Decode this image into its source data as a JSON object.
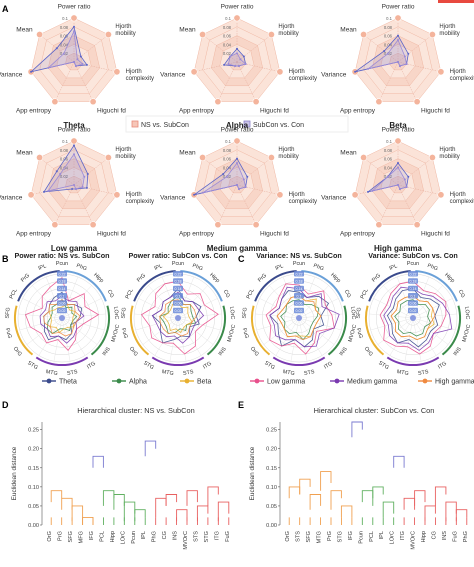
{
  "panels": {
    "A": "A",
    "B": "B",
    "C": "C",
    "D": "D",
    "E": "E"
  },
  "accent_color": "#e8493f",
  "radar_axes": [
    "Power ratio",
    "Hjorth mobility",
    "Hjorth complexity",
    "Higuchi fd",
    "App entropy",
    "Variance",
    "Mean"
  ],
  "radar_ticks": [
    "0.1",
    "0.08",
    "0.06",
    "0.04",
    "0.02"
  ],
  "radar_legend": [
    "NS vs. SubCon",
    "SubCon vs. Con"
  ],
  "chart_data": [
    {
      "type": "radar",
      "title": "Theta",
      "axes": [
        "Power ratio",
        "Hjorth mobility",
        "Hjorth complexity",
        "Higuchi fd",
        "App entropy",
        "Variance",
        "Mean"
      ],
      "series": [
        {
          "name": "NS vs. SubCon",
          "values": [
            0.08,
            0.02,
            0.03,
            0.01,
            0.0,
            0.1,
            0.05
          ]
        },
        {
          "name": "SubCon vs. Con",
          "values": [
            0.07,
            0.01,
            0.02,
            0.01,
            0.0,
            0.06,
            0.03
          ]
        }
      ]
    },
    {
      "type": "radar",
      "title": "Alpha",
      "axes": [
        "Power ratio",
        "Hjorth mobility",
        "Hjorth complexity",
        "Higuchi fd",
        "App entropy",
        "Variance",
        "Mean"
      ],
      "series": [
        {
          "name": "NS vs. SubCon",
          "values": [
            0.03,
            0.02,
            0.02,
            0.01,
            0.01,
            0.03,
            0.02
          ]
        },
        {
          "name": "SubCon vs. Con",
          "values": [
            0.02,
            0.01,
            0.02,
            0.01,
            0.01,
            0.02,
            0.02
          ]
        }
      ]
    },
    {
      "type": "radar",
      "title": "Beta",
      "axes": [
        "Power ratio",
        "Hjorth mobility",
        "Hjorth complexity",
        "Higuchi fd",
        "App entropy",
        "Variance",
        "Mean"
      ],
      "series": [
        {
          "name": "NS vs. SubCon",
          "values": [
            0.06,
            0.03,
            0.02,
            0.01,
            0.0,
            0.1,
            0.04
          ]
        },
        {
          "name": "SubCon vs. Con",
          "values": [
            0.05,
            0.02,
            0.02,
            0.01,
            0.0,
            0.07,
            0.03
          ]
        }
      ]
    },
    {
      "type": "radar",
      "title": "Low gamma",
      "axes": [
        "Power ratio",
        "Hjorth mobility",
        "Hjorth complexity",
        "Higuchi fd",
        "App entropy",
        "Variance",
        "Mean"
      ],
      "series": [
        {
          "name": "NS vs. SubCon",
          "values": [
            0.09,
            0.04,
            0.03,
            0.01,
            0.01,
            0.07,
            0.05
          ]
        },
        {
          "name": "SubCon vs. Con",
          "values": [
            0.07,
            0.03,
            0.02,
            0.01,
            0.0,
            0.06,
            0.04
          ]
        }
      ]
    },
    {
      "type": "radar",
      "title": "Medium gamma",
      "axes": [
        "Power ratio",
        "Hjorth mobility",
        "Hjorth complexity",
        "Higuchi fd",
        "App entropy",
        "Variance",
        "Mean"
      ],
      "series": [
        {
          "name": "NS vs. SubCon",
          "values": [
            0.06,
            0.03,
            0.02,
            0.01,
            0.0,
            0.1,
            0.04
          ]
        },
        {
          "name": "SubCon vs. Con",
          "values": [
            0.05,
            0.02,
            0.02,
            0.01,
            0.0,
            0.08,
            0.03
          ]
        }
      ]
    },
    {
      "type": "radar",
      "title": "High gamma",
      "axes": [
        "Power ratio",
        "Hjorth mobility",
        "Hjorth complexity",
        "Higuchi fd",
        "App entropy",
        "Variance",
        "Mean"
      ],
      "series": [
        {
          "name": "NS vs. SubCon",
          "values": [
            0.05,
            0.03,
            0.02,
            0.01,
            0.0,
            0.07,
            0.03
          ]
        },
        {
          "name": "SubCon vs. Con",
          "values": [
            0.04,
            0.02,
            0.02,
            0.01,
            0.0,
            0.06,
            0.03
          ]
        }
      ]
    },
    {
      "type": "radar",
      "title": "Power ratio: NS vs. SubCon",
      "panel": "B",
      "regions": [
        "Pcun",
        "PhG",
        "Hipp",
        "CG",
        "LOrC",
        "MVOrC",
        "INS",
        "ITG",
        "STS",
        "MTG",
        "STG",
        "OrG",
        "FuG",
        "SFG",
        "PCL",
        "PrG",
        "IPL"
      ],
      "rings": [
        "0.02",
        "0.06",
        "0.1",
        "0.14",
        "0.18",
        "0.22"
      ],
      "series_names": [
        "Theta",
        "Alpha",
        "Beta",
        "Low gamma",
        "Medium gamma",
        "High gamma"
      ],
      "series": [
        {
          "name": "Theta",
          "values": [
            0.14,
            0.08,
            0.1,
            0.12,
            0.1,
            0.08,
            0.06,
            0.1,
            0.12,
            0.1,
            0.14,
            0.12,
            0.1,
            0.1,
            0.08,
            0.1,
            0.12
          ]
        },
        {
          "name": "Alpha",
          "values": [
            0.1,
            0.06,
            0.08,
            0.06,
            0.08,
            0.06,
            0.06,
            0.08,
            0.06,
            0.06,
            0.1,
            0.1,
            0.08,
            0.06,
            0.06,
            0.08,
            0.08
          ]
        },
        {
          "name": "Beta",
          "values": [
            0.06,
            0.08,
            0.06,
            0.08,
            0.06,
            0.06,
            0.08,
            0.06,
            0.06,
            0.08,
            0.06,
            0.08,
            0.06,
            0.06,
            0.08,
            0.06,
            0.06
          ]
        },
        {
          "name": "Low gamma",
          "values": [
            0.22,
            0.1,
            0.18,
            0.14,
            0.2,
            0.12,
            0.1,
            0.14,
            0.18,
            0.12,
            0.16,
            0.14,
            0.18,
            0.2,
            0.12,
            0.16,
            0.18
          ]
        },
        {
          "name": "Medium gamma",
          "values": [
            0.12,
            0.1,
            0.12,
            0.1,
            0.12,
            0.08,
            0.1,
            0.12,
            0.14,
            0.1,
            0.12,
            0.1,
            0.12,
            0.12,
            0.1,
            0.12,
            0.1
          ]
        },
        {
          "name": "High gamma",
          "values": [
            0.1,
            0.08,
            0.1,
            0.08,
            0.1,
            0.08,
            0.08,
            0.1,
            0.1,
            0.08,
            0.1,
            0.08,
            0.1,
            0.1,
            0.08,
            0.1,
            0.08
          ]
        }
      ]
    },
    {
      "type": "radar",
      "title": "Power ratio: SubCon vs. Con",
      "panel": "B",
      "regions": [
        "Pcun",
        "PhG",
        "Hipp",
        "CG",
        "LOrC",
        "MVOrC",
        "INS",
        "ITG",
        "STS",
        "MTG",
        "STG",
        "OrG",
        "FuG",
        "SFG",
        "PCL",
        "PrG",
        "IPL"
      ],
      "rings": [
        "0.02",
        "0.06",
        "0.1",
        "0.14",
        "0.18",
        "0.22"
      ],
      "series_names": [
        "Theta",
        "Alpha",
        "Beta",
        "Low gamma",
        "Medium gamma",
        "High gamma"
      ],
      "series": [
        {
          "name": "Theta",
          "values": [
            0.16,
            0.1,
            0.12,
            0.14,
            0.1,
            0.12,
            0.08,
            0.12,
            0.1,
            0.12,
            0.16,
            0.12,
            0.1,
            0.14,
            0.1,
            0.12,
            0.12
          ]
        },
        {
          "name": "Alpha",
          "values": [
            0.12,
            0.08,
            0.1,
            0.08,
            0.08,
            0.1,
            0.06,
            0.08,
            0.06,
            0.08,
            0.1,
            0.08,
            0.08,
            0.1,
            0.06,
            0.08,
            0.1
          ]
        },
        {
          "name": "Beta",
          "values": [
            0.08,
            0.06,
            0.08,
            0.06,
            0.06,
            0.08,
            0.06,
            0.06,
            0.08,
            0.06,
            0.08,
            0.06,
            0.06,
            0.08,
            0.06,
            0.06,
            0.08
          ]
        },
        {
          "name": "Low gamma",
          "values": [
            0.2,
            0.14,
            0.18,
            0.16,
            0.22,
            0.14,
            0.12,
            0.18,
            0.2,
            0.14,
            0.16,
            0.18,
            0.16,
            0.2,
            0.14,
            0.18,
            0.2
          ]
        },
        {
          "name": "Medium gamma",
          "values": [
            0.14,
            0.1,
            0.12,
            0.12,
            0.14,
            0.1,
            0.1,
            0.12,
            0.14,
            0.1,
            0.12,
            0.12,
            0.12,
            0.14,
            0.1,
            0.12,
            0.12
          ]
        },
        {
          "name": "High gamma",
          "values": [
            0.1,
            0.08,
            0.1,
            0.1,
            0.1,
            0.08,
            0.08,
            0.1,
            0.1,
            0.08,
            0.1,
            0.1,
            0.1,
            0.1,
            0.08,
            0.1,
            0.1
          ]
        }
      ]
    },
    {
      "type": "radar",
      "title": "Variance: NS vs. SubCon",
      "panel": "C",
      "regions": [
        "Pcun",
        "PhG",
        "Hipp",
        "CG",
        "LOrC",
        "MVOrC",
        "INS",
        "ITG",
        "STS",
        "MTG",
        "STG",
        "OrG",
        "FuG",
        "SFG",
        "PCL",
        "PrG",
        "IPL"
      ],
      "rings": [
        "0.02",
        "0.06",
        "0.1",
        "0.14",
        "0.18",
        "0.22"
      ],
      "series_names": [
        "Theta",
        "Alpha",
        "Beta",
        "Low gamma",
        "Medium gamma",
        "High gamma"
      ],
      "series": [
        {
          "name": "Theta",
          "values": [
            0.14,
            0.12,
            0.16,
            0.18,
            0.12,
            0.14,
            0.1,
            0.14,
            0.16,
            0.12,
            0.18,
            0.14,
            0.12,
            0.16,
            0.12,
            0.14,
            0.16
          ]
        },
        {
          "name": "Alpha",
          "values": [
            0.1,
            0.08,
            0.1,
            0.12,
            0.1,
            0.08,
            0.08,
            0.1,
            0.12,
            0.08,
            0.1,
            0.1,
            0.08,
            0.1,
            0.08,
            0.1,
            0.1
          ]
        },
        {
          "name": "Beta",
          "values": [
            0.12,
            0.1,
            0.14,
            0.1,
            0.12,
            0.1,
            0.1,
            0.12,
            0.1,
            0.1,
            0.12,
            0.1,
            0.1,
            0.12,
            0.1,
            0.1,
            0.12
          ]
        },
        {
          "name": "Low gamma",
          "values": [
            0.18,
            0.14,
            0.2,
            0.16,
            0.18,
            0.2,
            0.12,
            0.16,
            0.2,
            0.14,
            0.18,
            0.2,
            0.16,
            0.18,
            0.14,
            0.16,
            0.2
          ]
        },
        {
          "name": "Medium gamma",
          "values": [
            0.16,
            0.12,
            0.18,
            0.14,
            0.22,
            0.2,
            0.14,
            0.18,
            0.16,
            0.12,
            0.14,
            0.16,
            0.14,
            0.16,
            0.12,
            0.14,
            0.18
          ]
        },
        {
          "name": "High gamma",
          "values": [
            0.12,
            0.1,
            0.12,
            0.1,
            0.12,
            0.1,
            0.1,
            0.12,
            0.12,
            0.1,
            0.12,
            0.1,
            0.1,
            0.12,
            0.1,
            0.1,
            0.12
          ]
        }
      ]
    },
    {
      "type": "radar",
      "title": "Variance: SubCon vs. Con",
      "panel": "C",
      "regions": [
        "Pcun",
        "PhG",
        "Hipp",
        "CG",
        "LOrC",
        "MVOrC",
        "INS",
        "ITG",
        "STS",
        "MTG",
        "STG",
        "OrG",
        "FuG",
        "SFG",
        "PCL",
        "PrG",
        "IPL"
      ],
      "rings": [
        "0.02",
        "0.06",
        "0.1",
        "0.14",
        "0.18",
        "0.22"
      ],
      "series_names": [
        "Theta",
        "Alpha",
        "Beta",
        "Low gamma",
        "Medium gamma",
        "High gamma"
      ],
      "series": [
        {
          "name": "Theta",
          "values": [
            0.16,
            0.12,
            0.14,
            0.16,
            0.12,
            0.14,
            0.12,
            0.14,
            0.16,
            0.12,
            0.16,
            0.14,
            0.12,
            0.14,
            0.12,
            0.14,
            0.16
          ]
        },
        {
          "name": "Alpha",
          "values": [
            0.1,
            0.08,
            0.1,
            0.1,
            0.08,
            0.1,
            0.08,
            0.1,
            0.1,
            0.08,
            0.1,
            0.1,
            0.08,
            0.1,
            0.08,
            0.1,
            0.1
          ]
        },
        {
          "name": "Beta",
          "values": [
            0.12,
            0.1,
            0.12,
            0.12,
            0.1,
            0.12,
            0.1,
            0.12,
            0.12,
            0.1,
            0.12,
            0.12,
            0.1,
            0.12,
            0.1,
            0.12,
            0.12
          ]
        },
        {
          "name": "Low gamma",
          "values": [
            0.2,
            0.16,
            0.18,
            0.2,
            0.18,
            0.16,
            0.14,
            0.18,
            0.2,
            0.16,
            0.18,
            0.2,
            0.16,
            0.18,
            0.16,
            0.18,
            0.2
          ]
        },
        {
          "name": "Medium gamma",
          "values": [
            0.16,
            0.14,
            0.16,
            0.18,
            0.2,
            0.22,
            0.14,
            0.16,
            0.18,
            0.14,
            0.16,
            0.16,
            0.14,
            0.16,
            0.14,
            0.16,
            0.18
          ]
        },
        {
          "name": "High gamma",
          "values": [
            0.12,
            0.1,
            0.12,
            0.12,
            0.12,
            0.1,
            0.1,
            0.12,
            0.12,
            0.1,
            0.12,
            0.12,
            0.1,
            0.12,
            0.1,
            0.12,
            0.12
          ]
        }
      ]
    },
    {
      "type": "dendrogram",
      "title": "Hierarchical cluster: NS vs. SubCon",
      "panel": "D",
      "ylabel": "Euclidean distance",
      "ylim": [
        0,
        0.27
      ],
      "yticks": [
        "0.00",
        "0.05",
        "0.10",
        "0.15",
        "0.20",
        "0.25"
      ],
      "leaves": [
        "OrG",
        "PrG",
        "SFG",
        "MFG",
        "IFG",
        "PCL",
        "Hipp",
        "LOrC",
        "Pcun",
        "IPL",
        "PhG",
        "CG",
        "INS",
        "MVOrC",
        "STS",
        "STG",
        "ITG",
        "FuG"
      ],
      "leaf_colors": [
        "#f0a050",
        "#f0a050",
        "#f0a050",
        "#f0a050",
        "#f0a050",
        "#60b060",
        "#60b060",
        "#60b060",
        "#60b060",
        "#60b060",
        "#e86060",
        "#e86060",
        "#e86060",
        "#e86060",
        "#e86060",
        "#e86060",
        "#e86060",
        "#e86060"
      ]
    },
    {
      "type": "dendrogram",
      "title": "Hierarchical cluster: SubCon vs. Con",
      "panel": "E",
      "ylabel": "Euclidean distance",
      "ylim": [
        0,
        0.27
      ],
      "yticks": [
        "0.00",
        "0.05",
        "0.10",
        "0.15",
        "0.20",
        "0.25"
      ],
      "leaves": [
        "OrG",
        "STS",
        "SFG",
        "MTG",
        "PrG",
        "STG",
        "IFG",
        "Pcun",
        "PCL",
        "IPL",
        "LOrC",
        "ITG",
        "MVOrC",
        "Hipp",
        "CG",
        "INS",
        "FuG",
        "PhG"
      ],
      "leaf_colors": [
        "#f0a050",
        "#f0a050",
        "#f0a050",
        "#f0a050",
        "#f0a050",
        "#f0a050",
        "#f0a050",
        "#60b060",
        "#60b060",
        "#60b060",
        "#60b060",
        "#e86060",
        "#e86060",
        "#e86060",
        "#e86060",
        "#e86060",
        "#e86060",
        "#e86060"
      ]
    }
  ],
  "band_legend": [
    {
      "name": "Theta",
      "color": "#3a4a8c"
    },
    {
      "name": "Alpha",
      "color": "#3a8a4a"
    },
    {
      "name": "Beta",
      "color": "#e8b030"
    },
    {
      "name": "Low gamma",
      "color": "#e8508c"
    },
    {
      "name": "Medium gamma",
      "color": "#7a3ab0"
    },
    {
      "name": "High gamma",
      "color": "#f08a40"
    }
  ]
}
